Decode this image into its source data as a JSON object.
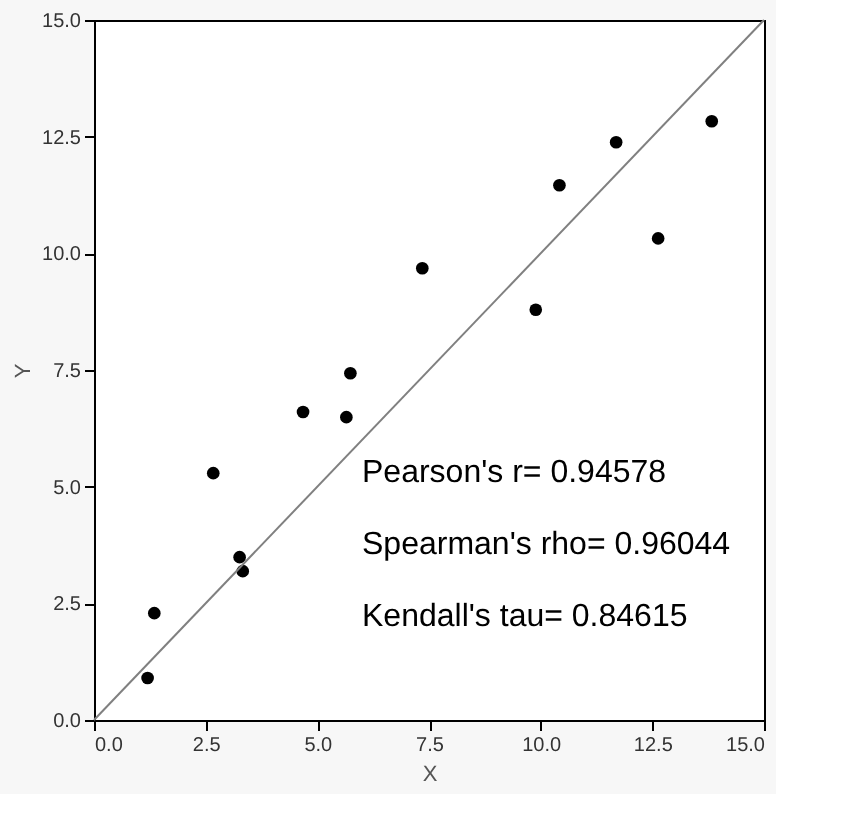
{
  "chart_data": {
    "type": "scatter",
    "xlabel": "X",
    "ylabel": "Y",
    "xlim": [
      0,
      15
    ],
    "ylim": [
      0,
      15
    ],
    "xticks": [
      {
        "value": 0,
        "label": "0.0"
      },
      {
        "value": 2.5,
        "label": "2.5"
      },
      {
        "value": 5,
        "label": "5.0"
      },
      {
        "value": 7.5,
        "label": "7.5"
      },
      {
        "value": 10,
        "label": "10.0"
      },
      {
        "value": 12.5,
        "label": "12.5"
      },
      {
        "value": 15,
        "label": "15.0"
      }
    ],
    "yticks": [
      {
        "value": 0,
        "label": "0.0"
      },
      {
        "value": 2.5,
        "label": "2.5"
      },
      {
        "value": 5,
        "label": "5.0"
      },
      {
        "value": 7.5,
        "label": "7.5"
      },
      {
        "value": 10,
        "label": "10.0"
      },
      {
        "value": 12.5,
        "label": "12.5"
      },
      {
        "value": 15,
        "label": "15.0"
      }
    ],
    "grid": false,
    "series": [
      {
        "marker": "circle",
        "color": "#000000",
        "x": [
          1.2,
          1.35,
          2.67,
          3.26,
          3.33,
          4.68,
          5.65,
          5.74,
          7.35,
          9.89,
          10.42,
          11.69,
          12.63,
          13.83
        ],
        "values": [
          0.9,
          2.29,
          5.29,
          3.49,
          3.19,
          6.6,
          6.49,
          7.43,
          9.68,
          8.79,
          11.46,
          12.38,
          10.32,
          12.83
        ]
      },
      {
        "type": "line",
        "marker": "none",
        "color": "#808080",
        "x": [
          0,
          15
        ],
        "values": [
          0,
          15
        ]
      }
    ],
    "annotations": [
      "Pearson's r= 0.94578",
      "Spearman's rho= 0.96044",
      "Kendall's tau= 0.84615"
    ]
  }
}
